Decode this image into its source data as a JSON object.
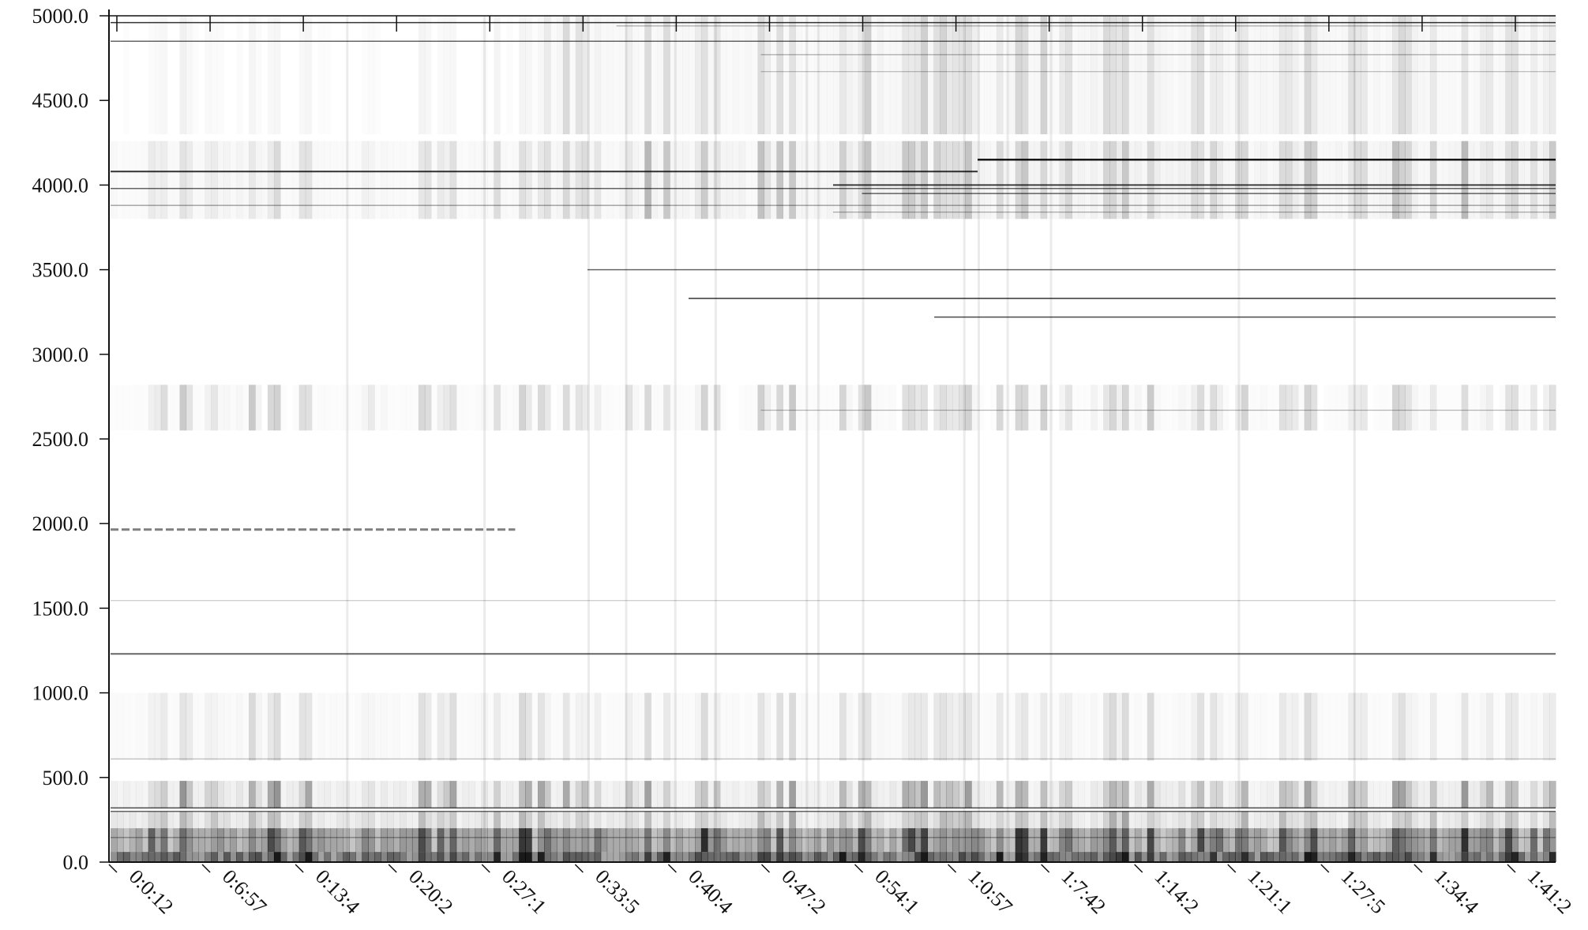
{
  "chart_data": {
    "type": "heatmap",
    "title": "",
    "xlabel": "",
    "ylabel": "",
    "ylim": [
      0,
      5000
    ],
    "y_ticks": [
      "0.0",
      "500.0",
      "1000.0",
      "1500.0",
      "2000.0",
      "2500.0",
      "3000.0",
      "3500.0",
      "4000.0",
      "4500.0",
      "5000.0"
    ],
    "x_ticks": [
      "0:0:12",
      "0:6:57",
      "0:13:4",
      "0:20:2",
      "0:27:1",
      "0:33:5",
      "0:40:4",
      "0:47:2",
      "0:54:1",
      "1:0:57",
      "1:7:42",
      "1:14:2",
      "1:21:1",
      "1:27:5",
      "1:34:4",
      "1:41:2"
    ],
    "colormap": [
      "#ffffff",
      "#000000"
    ],
    "grid": false,
    "legend": "none",
    "notes_visible_bands_hz": [
      {
        "band": "0-200",
        "intensity": "very high"
      },
      {
        "band": "200-450",
        "intensity": "medium"
      },
      {
        "band": "600-1000",
        "intensity": "low"
      },
      {
        "band": "1230",
        "intensity": "steady line"
      },
      {
        "band": "1950-1980",
        "intensity": "dashed line, early section"
      },
      {
        "band": "2600-2800",
        "intensity": "faint pulses"
      },
      {
        "band": "3200-3350",
        "intensity": "thin lines, later section"
      },
      {
        "band": "3800-4250",
        "intensity": "medium with strong lines"
      },
      {
        "band": "4500-5000",
        "intensity": "faint to medium"
      }
    ]
  }
}
